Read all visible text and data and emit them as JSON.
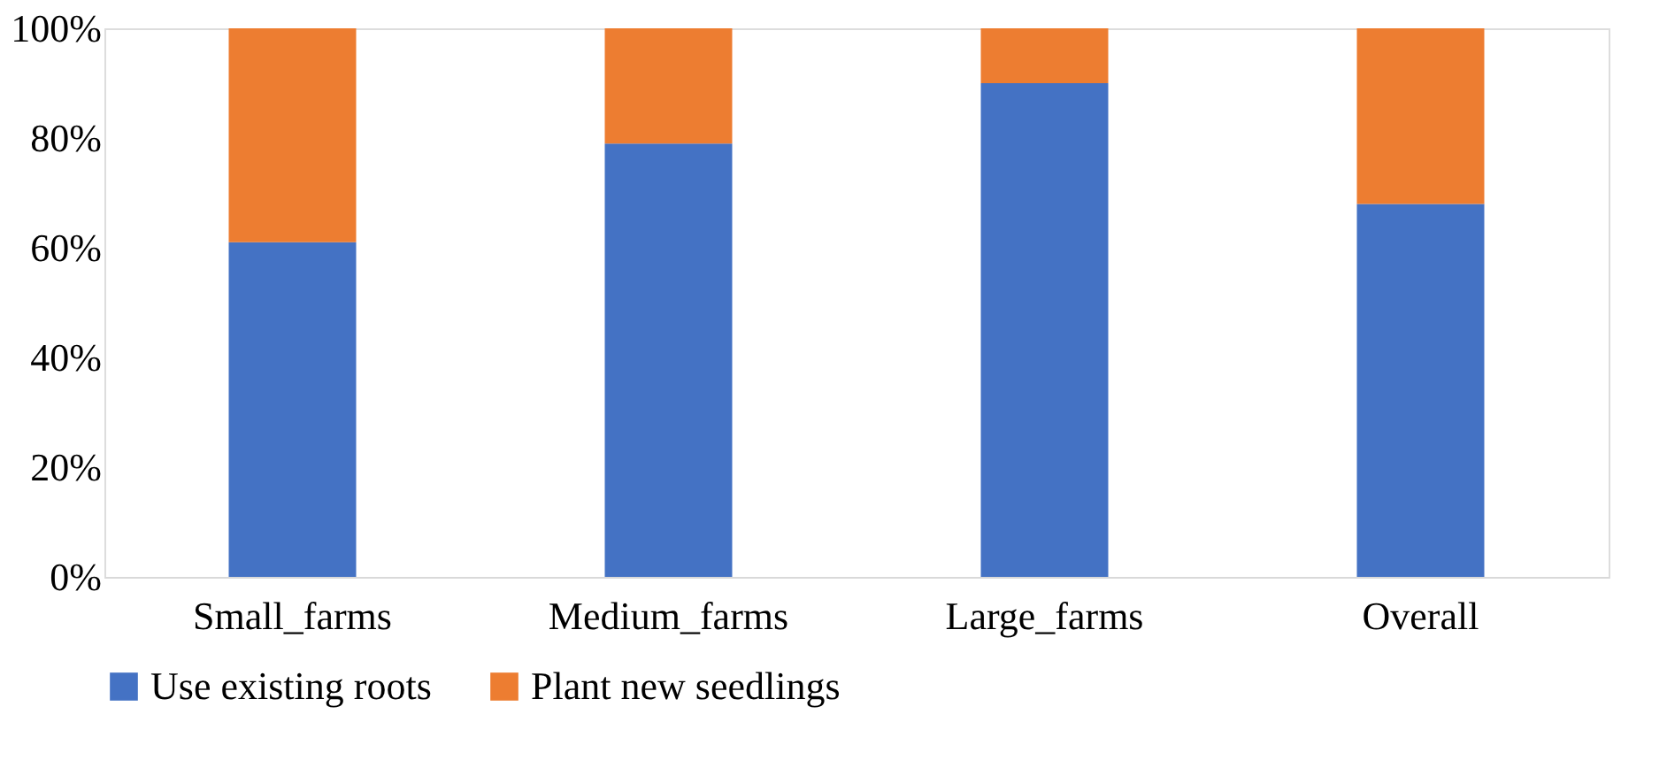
{
  "chart_data": {
    "type": "bar",
    "stacked": true,
    "categories": [
      "Small_farms",
      "Medium_farms",
      "Large_farms",
      "Overall"
    ],
    "series": [
      {
        "name": "Use existing roots",
        "color": "#4472c4",
        "values": [
          61,
          79,
          90,
          68
        ]
      },
      {
        "name": "Plant new seedlings",
        "color": "#ed7d31",
        "values": [
          39,
          21,
          10,
          32
        ]
      }
    ],
    "ylim": [
      0,
      100
    ],
    "yticks": [
      {
        "value": 0,
        "label": "0%"
      },
      {
        "value": 20,
        "label": "20%"
      },
      {
        "value": 40,
        "label": "40%"
      },
      {
        "value": 60,
        "label": "60%"
      },
      {
        "value": 80,
        "label": "80%"
      },
      {
        "value": 100,
        "label": "100%"
      }
    ],
    "grid": false,
    "legend": "bottom"
  }
}
